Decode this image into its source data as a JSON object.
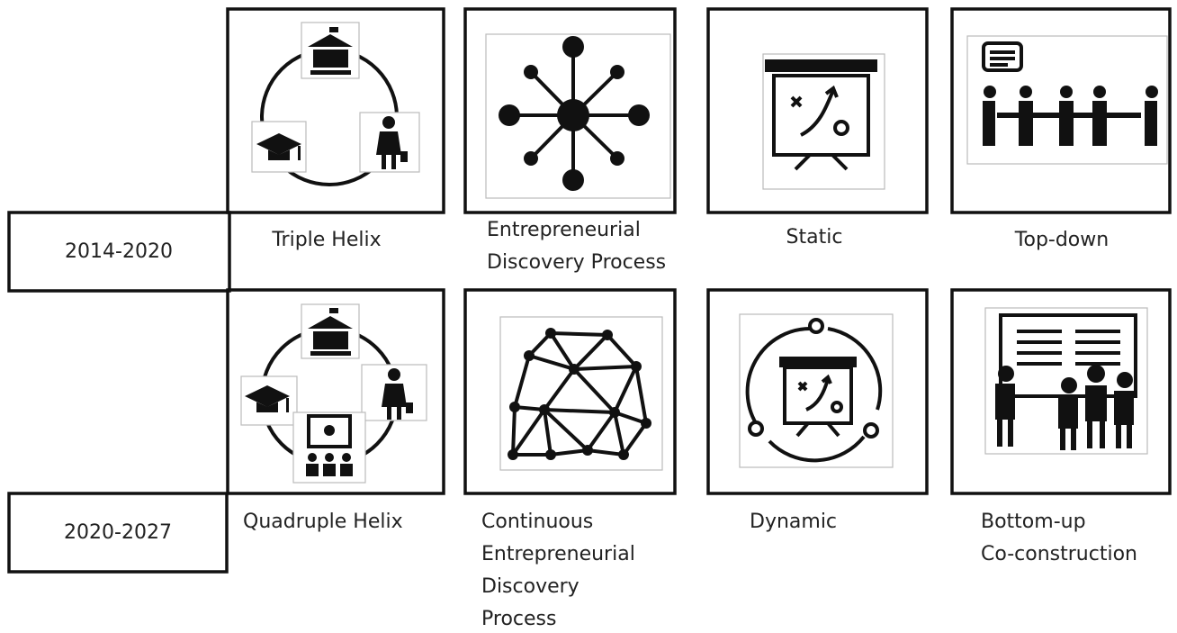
{
  "rows": [
    {
      "period": "2014-2020",
      "items": [
        {
          "label": [
            "Triple Helix"
          ]
        },
        {
          "label": [
            "Entrepreneurial",
            "Discovery Process"
          ]
        },
        {
          "label": [
            "Static"
          ]
        },
        {
          "label": [
            "Top-down"
          ]
        }
      ]
    },
    {
      "period": "2020-2027",
      "items": [
        {
          "label": [
            "Quadruple Helix"
          ]
        },
        {
          "label": [
            "Continuous",
            "Entrepreneurial",
            "Discovery",
            "Process"
          ]
        },
        {
          "label": [
            "Dynamic"
          ]
        },
        {
          "label": [
            "Bottom-up",
            "Co-construction"
          ]
        }
      ]
    }
  ]
}
